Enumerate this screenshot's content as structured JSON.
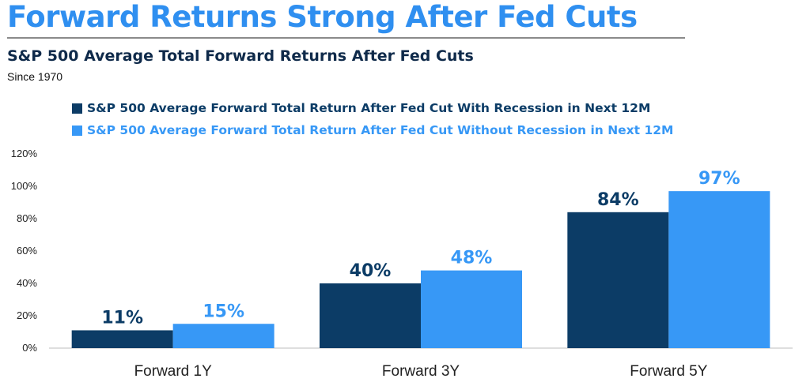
{
  "header": {
    "headline": "Forward Returns Strong After Fed Cuts"
  },
  "chart_data": {
    "type": "bar",
    "title": "S&P 500 Average Total Forward Returns After Fed Cuts",
    "subtitle": "Since 1970",
    "categories": [
      "Forward 1Y",
      "Forward 3Y",
      "Forward 5Y"
    ],
    "series": [
      {
        "name": "S&P 500 Average Forward Total Return After Fed Cut With Recession in Next 12M",
        "color": "#0c3c66",
        "values": [
          11,
          40,
          84
        ],
        "labels": [
          "11%",
          "40%",
          "84%"
        ]
      },
      {
        "name": "S&P 500 Average Forward Total Return After Fed Cut Without Recession in Next 12M",
        "color": "#3798f6",
        "values": [
          15,
          48,
          97
        ],
        "labels": [
          "15%",
          "48%",
          "97%"
        ]
      }
    ],
    "yticks": [
      "0%",
      "20%",
      "40%",
      "60%",
      "80%",
      "100%",
      "120%"
    ],
    "ylim": [
      0,
      120
    ],
    "grid": false,
    "legend_position": "top-left",
    "xlabel": "",
    "ylabel": ""
  }
}
